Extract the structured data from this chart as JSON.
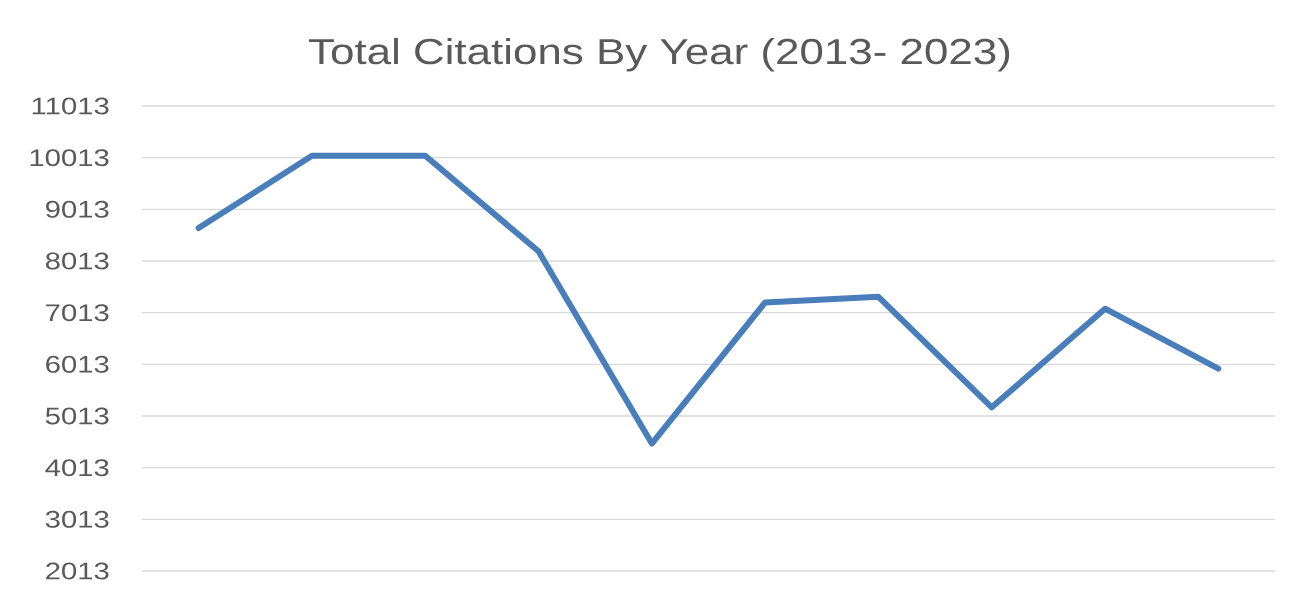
{
  "chart_data": {
    "type": "line",
    "title": "Total Citations By Year (2013- 2023)",
    "categories": [
      null,
      null,
      null,
      null,
      null,
      null,
      null,
      null,
      null,
      null
    ],
    "values": [
      8650,
      10050,
      10050,
      8200,
      4480,
      7210,
      7320,
      5180,
      7090,
      5930
    ],
    "color": "#4a7ebb",
    "ylim": [
      2013,
      11013
    ],
    "yticks": [
      2013,
      3013,
      4013,
      5013,
      6013,
      7013,
      8013,
      9013,
      10013,
      11013
    ],
    "grid": "y",
    "marker": "none",
    "line_style": "solid"
  }
}
